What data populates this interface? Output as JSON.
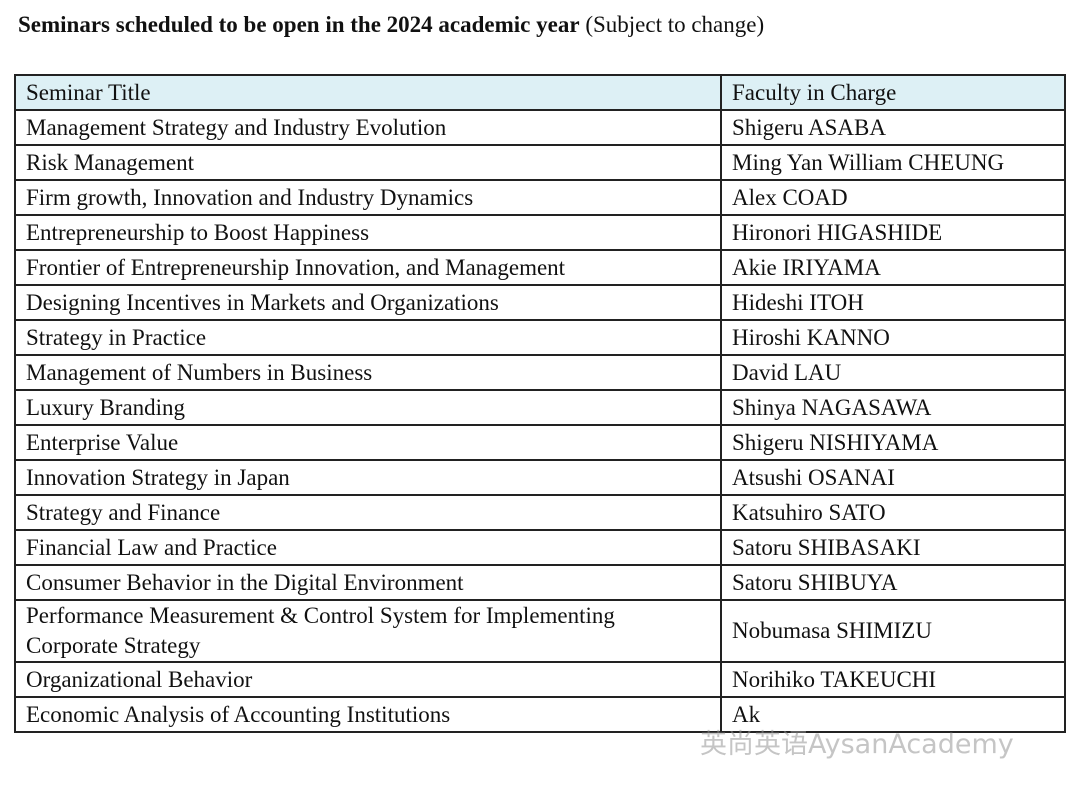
{
  "header": {
    "title": "Seminars scheduled to be open in the 2024 academic year",
    "note": "(Subject to change)"
  },
  "table": {
    "columns": [
      "Seminar Title",
      "Faculty in Charge"
    ],
    "rows": [
      [
        "Management Strategy and Industry Evolution",
        "Shigeru ASABA"
      ],
      [
        "Risk Management",
        "Ming Yan William CHEUNG"
      ],
      [
        "Firm growth, Innovation and Industry Dynamics",
        "Alex COAD"
      ],
      [
        "Entrepreneurship to Boost Happiness",
        "Hironori HIGASHIDE"
      ],
      [
        "Frontier of Entrepreneurship Innovation, and Management",
        "Akie IRIYAMA"
      ],
      [
        "Designing Incentives in Markets and Organizations",
        "Hideshi ITOH"
      ],
      [
        "Strategy in Practice",
        "Hiroshi KANNO"
      ],
      [
        "Management of Numbers in Business",
        "David LAU"
      ],
      [
        "Luxury Branding",
        "Shinya NAGASAWA"
      ],
      [
        "Enterprise Value",
        "Shigeru NISHIYAMA"
      ],
      [
        "Innovation Strategy in Japan",
        "Atsushi OSANAI"
      ],
      [
        "Strategy and Finance",
        "Katsuhiro SATO"
      ],
      [
        "Financial Law and Practice",
        "Satoru SHIBASAKI"
      ],
      [
        "Consumer Behavior in the Digital Environment",
        "Satoru SHIBUYA"
      ],
      [
        "Performance Measurement & Control System for Implementing Corporate Strategy",
        "Nobumasa SHIMIZU"
      ],
      [
        "Organizational Behavior",
        "Norihiko TAKEUCHI"
      ],
      [
        "Economic Analysis of Accounting Institutions",
        "Ak"
      ]
    ]
  },
  "watermark": "英尚英语AysanAcademy"
}
